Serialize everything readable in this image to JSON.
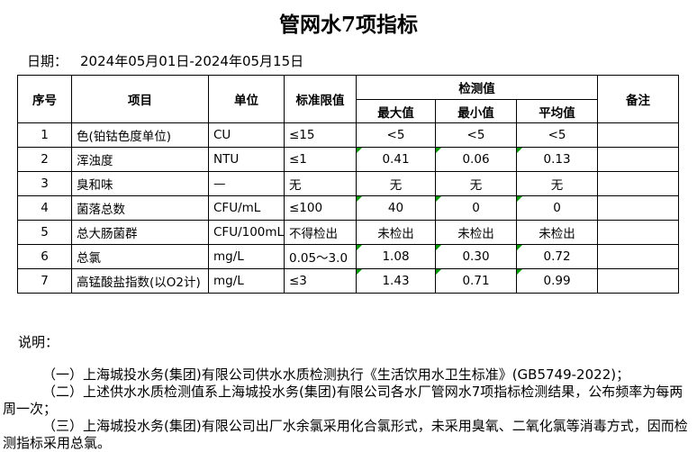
{
  "title": "管网水7项指标",
  "date": {
    "label": "日期：",
    "value": "2024年05月01日-2024年05月15日"
  },
  "table": {
    "flag_color": "#009900",
    "headers": {
      "no": "序号",
      "item": "项目",
      "unit": "单位",
      "limit": "标准限值",
      "detection": "检测值",
      "max": "最大值",
      "min": "最小值",
      "avg": "平均值",
      "remark": "备注"
    },
    "rows": [
      {
        "no": "1",
        "item": "色(铂钴色度单位)",
        "unit": "CU",
        "limit": "≤15",
        "max": "<5",
        "min": "<5",
        "avg": "<5",
        "remark": "",
        "flagged": false
      },
      {
        "no": "2",
        "item": "浑浊度",
        "unit": "NTU",
        "limit": "≤1",
        "max": "0.41",
        "min": "0.06",
        "avg": "0.13",
        "remark": "",
        "flagged": true
      },
      {
        "no": "3",
        "item": "臭和味",
        "unit": "—",
        "limit": "无",
        "max": "无",
        "min": "无",
        "avg": "无",
        "remark": "",
        "flagged": false
      },
      {
        "no": "4",
        "item": "菌落总数",
        "unit": "CFU/mL",
        "limit": "≤100",
        "max": "40",
        "min": "0",
        "avg": "0",
        "remark": "",
        "flagged": true
      },
      {
        "no": "5",
        "item": "总大肠菌群",
        "unit": "CFU/100mL",
        "limit": "不得检出",
        "max": "未检出",
        "min": "未检出",
        "avg": "未检出",
        "remark": "",
        "flagged": false
      },
      {
        "no": "6",
        "item": "总氯",
        "unit": "mg/L",
        "limit": "0.05～3.0",
        "max": "1.08",
        "min": "0.30",
        "avg": "0.72",
        "remark": "",
        "flagged": true
      },
      {
        "no": "7",
        "item": "高锰酸盐指数(以O2计)",
        "unit": "mg/L",
        "limit": "≤3",
        "max": "1.43",
        "min": "0.71",
        "avg": "0.99",
        "remark": "",
        "flagged": true
      }
    ]
  },
  "notes": {
    "label": "说明：",
    "items": [
      "（一）上海城投水务(集团)有限公司供水水质检测执行《生活饮用水卫生标准》(GB5749-2022)；",
      "（二）上述供水水质检测值系上海城投水务(集团)有限公司各水厂管网水7项指标检测结果，公布频率为每两周一次；",
      "（三）上海城投水务(集团)有限公司出厂水余氯采用化合氯形式，未采用臭氧、二氧化氯等消毒方式，因而检测指标采用总氯。"
    ]
  }
}
